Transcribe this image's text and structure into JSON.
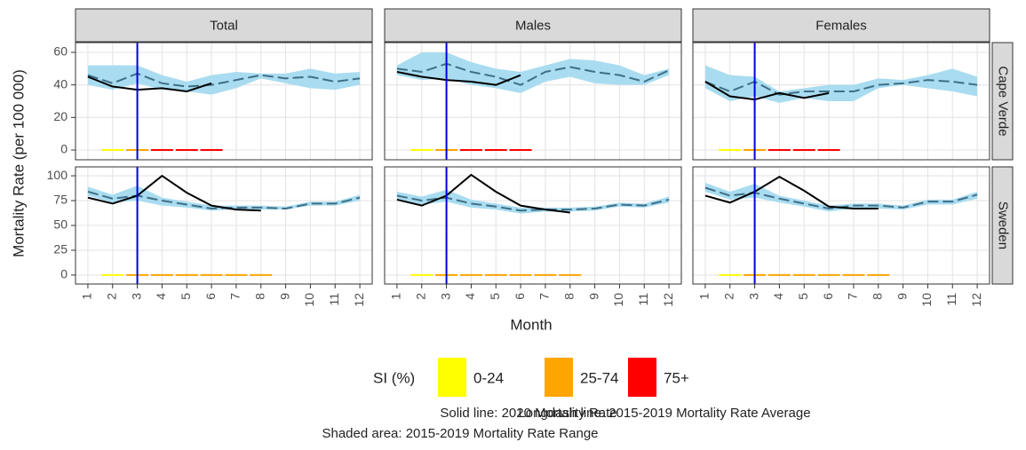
{
  "chart_data": {
    "type": "line",
    "x": [
      1,
      2,
      3,
      4,
      5,
      6,
      7,
      8,
      9,
      10,
      11,
      12
    ],
    "xlim": [
      0.5,
      12.5
    ],
    "xlabel": "Month",
    "ylabel": "Mortality Rate (per 100 000)",
    "columns": [
      "Total",
      "Males",
      "Females"
    ],
    "rows": [
      {
        "name": "Cape Verde",
        "ylim": [
          -6,
          66
        ],
        "yticks": [
          0,
          20,
          40,
          60
        ]
      },
      {
        "name": "Sweden",
        "ylim": [
          -9,
          109
        ],
        "yticks": [
          0,
          25,
          50,
          75,
          100
        ]
      }
    ],
    "vline": 3,
    "vline_color": "#0000e0",
    "line_color": "#000000",
    "average_color": "#3f6f86",
    "range_color": "#a9dcf0",
    "grid": true,
    "panels": [
      [
        {
          "rate_2020": [
            45,
            39,
            37,
            38,
            36,
            41,
            null,
            null,
            null,
            null,
            null,
            null
          ],
          "average": [
            46,
            41,
            47,
            41,
            39,
            40,
            43,
            46,
            44,
            45,
            42,
            44
          ],
          "range_low": [
            40,
            37,
            41,
            37,
            36,
            34,
            38,
            44,
            41,
            38,
            37,
            40
          ],
          "range_high": [
            52,
            52,
            52,
            46,
            42,
            46,
            48,
            47,
            47,
            50,
            47,
            48
          ],
          "si": [
            null,
            "0-24",
            "25-74",
            "75+",
            "75+",
            "75+",
            null,
            null,
            null,
            null,
            null,
            null
          ]
        },
        {
          "rate_2020": [
            48,
            45,
            43,
            42,
            40,
            46,
            null,
            null,
            null,
            null,
            null,
            null
          ],
          "average": [
            50,
            48,
            53,
            48,
            45,
            40,
            48,
            51,
            48,
            46,
            42,
            49
          ],
          "range_low": [
            46,
            43,
            44,
            40,
            38,
            35,
            42,
            45,
            41,
            40,
            40,
            46
          ],
          "range_high": [
            52,
            60,
            60,
            54,
            50,
            48,
            52,
            56,
            55,
            52,
            46,
            50
          ],
          "si": [
            null,
            "0-24",
            "25-74",
            "75+",
            "75+",
            "75+",
            null,
            null,
            null,
            null,
            null,
            null
          ]
        },
        {
          "rate_2020": [
            42,
            33,
            31,
            35,
            32,
            35,
            null,
            null,
            null,
            null,
            null,
            null
          ],
          "average": [
            42,
            36,
            42,
            34,
            36,
            36,
            36,
            40,
            41,
            43,
            42,
            40
          ],
          "range_low": [
            38,
            30,
            33,
            29,
            32,
            30,
            30,
            38,
            40,
            38,
            36,
            33
          ],
          "range_high": [
            52,
            46,
            45,
            36,
            38,
            40,
            40,
            44,
            43,
            46,
            50,
            45
          ],
          "si": [
            null,
            "0-24",
            "25-74",
            "75+",
            "75+",
            "75+",
            null,
            null,
            null,
            null,
            null,
            null
          ]
        }
      ],
      [
        {
          "rate_2020": [
            78,
            72,
            80,
            100,
            83,
            70,
            66,
            65,
            null,
            null,
            null,
            null
          ],
          "average": [
            84,
            77,
            80,
            75,
            71,
            67,
            68,
            68,
            67,
            72,
            72,
            78
          ],
          "range_low": [
            80,
            73,
            75,
            70,
            68,
            65,
            66,
            66,
            66,
            70,
            70,
            75
          ],
          "range_high": [
            89,
            81,
            90,
            78,
            74,
            70,
            70,
            70,
            69,
            74,
            74,
            81
          ],
          "si": [
            null,
            "0-24",
            "25-74",
            "25-74",
            "25-74",
            "25-74",
            "25-74",
            "25-74",
            null,
            null,
            null,
            null
          ]
        },
        {
          "rate_2020": [
            76,
            70,
            80,
            101,
            84,
            70,
            66,
            63,
            null,
            null,
            null,
            null
          ],
          "average": [
            80,
            75,
            78,
            72,
            69,
            65,
            66,
            66,
            67,
            71,
            70,
            76
          ],
          "range_low": [
            76,
            71,
            74,
            68,
            66,
            62,
            64,
            64,
            65,
            69,
            68,
            73
          ],
          "range_high": [
            84,
            79,
            86,
            76,
            72,
            68,
            68,
            68,
            69,
            73,
            72,
            79
          ],
          "si": [
            null,
            "0-24",
            "25-74",
            "25-74",
            "25-74",
            "25-74",
            "25-74",
            "25-74",
            null,
            null,
            null,
            null
          ]
        },
        {
          "rate_2020": [
            80,
            73,
            84,
            99,
            85,
            69,
            67,
            67,
            null,
            null,
            null,
            null
          ],
          "average": [
            88,
            80,
            83,
            77,
            72,
            67,
            70,
            70,
            68,
            74,
            74,
            81
          ],
          "range_low": [
            84,
            76,
            78,
            73,
            69,
            64,
            67,
            67,
            66,
            71,
            71,
            77
          ],
          "range_high": [
            93,
            84,
            92,
            80,
            75,
            70,
            72,
            72,
            70,
            76,
            76,
            84
          ],
          "si": [
            null,
            "0-24",
            "25-74",
            "25-74",
            "25-74",
            "25-74",
            "25-74",
            "25-74",
            null,
            null,
            null,
            null
          ]
        }
      ]
    ],
    "legend": {
      "title": "SI (%)",
      "categories": [
        "0-24",
        "25-74",
        "75+"
      ],
      "colors": [
        "#ffff00",
        "#ffa500",
        "#ff0000"
      ]
    },
    "notes": [
      "Solid line: 2020 Mortality Rate",
      "Longdash line: 2015-2019 Mortality Rate Average",
      "Shaded area: 2015-2019 Mortality Rate Range"
    ]
  }
}
